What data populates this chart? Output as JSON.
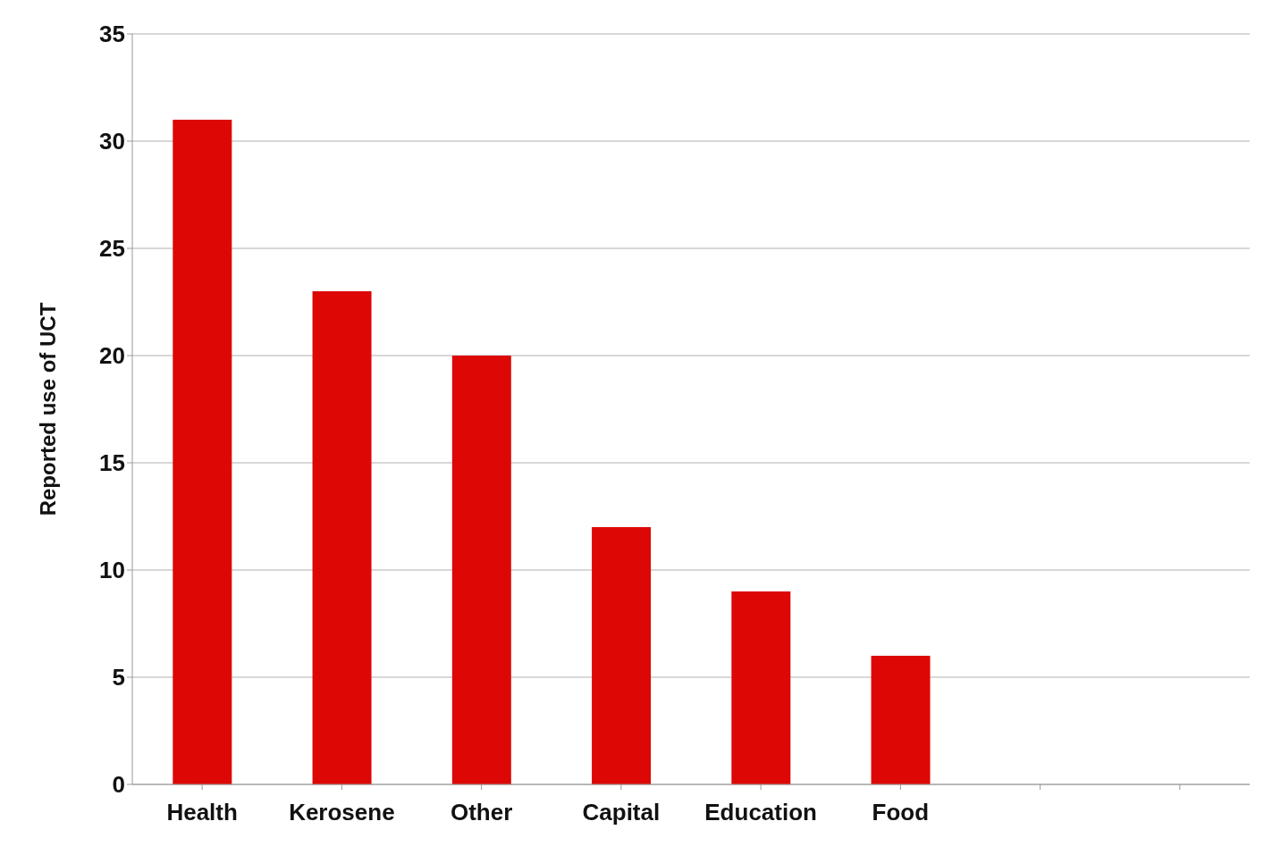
{
  "chart_data": {
    "type": "bar",
    "ylabel": "Reported use of UCT",
    "categories": [
      "Health",
      "Kerosene",
      "Other",
      "Capital",
      "Education",
      "Food",
      null,
      null
    ],
    "values": [
      31,
      23,
      20,
      12,
      9,
      6,
      null,
      null
    ],
    "color": "#dd0806",
    "ylim": [
      0,
      35
    ],
    "yticks": [
      0,
      5,
      10,
      15,
      20,
      25,
      30,
      35
    ],
    "grid": "y"
  }
}
